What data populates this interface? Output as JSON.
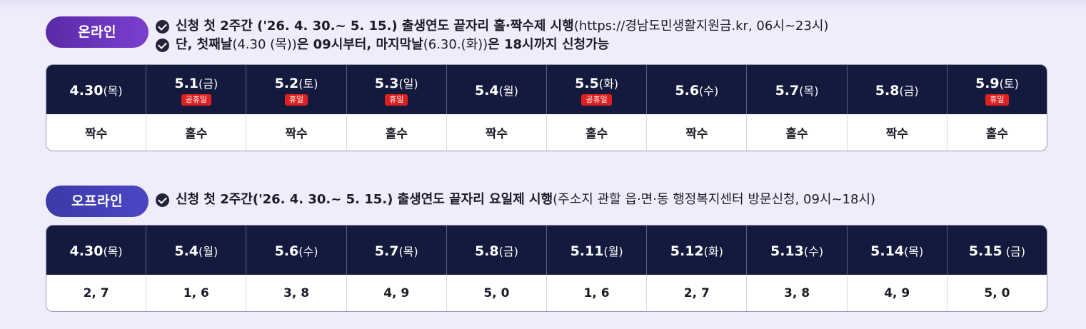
{
  "online": {
    "badge": "온라인",
    "notes": [
      {
        "bold": "신청 첫 2주간 ('26. 4. 30.~ 5. 15.) 출생연도 끝자리 홀·짝수제 시행",
        "light": "(https://경남도민생활지원금.kr, 06시~23시)"
      },
      {
        "bold_a": "단, 첫째날",
        "light_a": "(4.30 (목))",
        "bold_b": "은 09시부터, 마지막날",
        "light_b": "(6.30.(화))",
        "bold_c": "은 18시까지 신청가능"
      }
    ],
    "days": [
      {
        "num": "4.30",
        "dow": "(목)",
        "holiday": "",
        "value": "짝수"
      },
      {
        "num": "5.1",
        "dow": "(금)",
        "holiday": "공휴일",
        "value": "홀수"
      },
      {
        "num": "5.2",
        "dow": "(토)",
        "holiday": "휴일",
        "value": "짝수"
      },
      {
        "num": "5.3",
        "dow": "(일)",
        "holiday": "휴일",
        "value": "홀수"
      },
      {
        "num": "5.4",
        "dow": "(월)",
        "holiday": "",
        "value": "짝수"
      },
      {
        "num": "5.5",
        "dow": "(화)",
        "holiday": "공휴일",
        "value": "홀수"
      },
      {
        "num": "5.6",
        "dow": "(수)",
        "holiday": "",
        "value": "짝수"
      },
      {
        "num": "5.7",
        "dow": "(목)",
        "holiday": "",
        "value": "홀수"
      },
      {
        "num": "5.8",
        "dow": "(금)",
        "holiday": "",
        "value": "짝수"
      },
      {
        "num": "5.9",
        "dow": "(토)",
        "holiday": "휴일",
        "value": "홀수"
      }
    ]
  },
  "offline": {
    "badge": "오프라인",
    "note": {
      "bold": "신청 첫 2주간('26. 4. 30.~ 5. 15.) 출생연도 끝자리 요일제 시행",
      "light": "(주소지 관할 읍·면·동 행정복지센터 방문신청, 09시~18시)"
    },
    "days": [
      {
        "num": "4.30",
        "dow": "(목)",
        "value": "2, 7"
      },
      {
        "num": "5.4",
        "dow": "(월)",
        "value": "1, 6"
      },
      {
        "num": "5.6",
        "dow": "(수)",
        "value": "3, 8"
      },
      {
        "num": "5.7",
        "dow": "(목)",
        "value": "4, 9"
      },
      {
        "num": "5.8",
        "dow": "(금)",
        "value": "5, 0"
      },
      {
        "num": "5.11",
        "dow": "(월)",
        "value": "1, 6"
      },
      {
        "num": "5.12",
        "dow": "(화)",
        "value": "2, 7"
      },
      {
        "num": "5.13",
        "dow": "(수)",
        "value": "3, 8"
      },
      {
        "num": "5.14",
        "dow": "(목)",
        "value": "4, 9"
      },
      {
        "num": "5.15",
        "dow": " (금)",
        "value": "5, 0"
      }
    ]
  },
  "colors": {
    "online_badge": "#6a34bc",
    "offline_badge": "#4340b8",
    "table_header": "#141a3d",
    "holiday_tag": "#e02020",
    "background": "#efedfb"
  }
}
